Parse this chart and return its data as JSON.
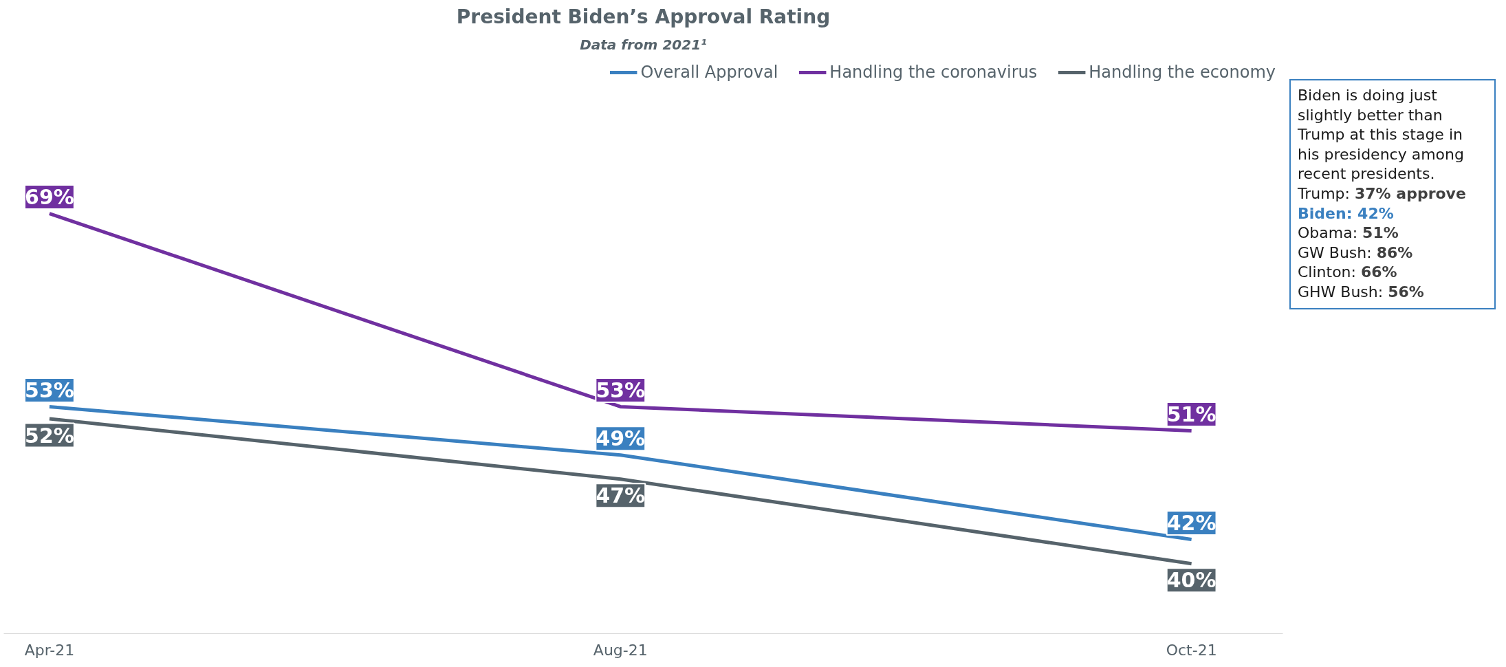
{
  "chart_data": {
    "type": "line",
    "title": "President Biden’s Approval Rating",
    "subtitle": "Data from 2021¹",
    "categories": [
      "Apr-21",
      "Aug-21",
      "Oct-21"
    ],
    "series": [
      {
        "name": "Overall Approval",
        "color": "#3a80c0",
        "values": [
          53,
          49,
          42
        ],
        "value_labels": [
          "53%",
          "49%",
          "42%"
        ]
      },
      {
        "name": "Handling the coronavirus",
        "color": "#7030a0",
        "values": [
          69,
          53,
          51
        ],
        "value_labels": [
          "69%",
          "53%",
          "51%"
        ]
      },
      {
        "name": "Handling the economy",
        "color": "#56636b",
        "values": [
          52,
          47,
          40
        ],
        "value_labels": [
          "52%",
          "47%",
          "40%"
        ]
      }
    ],
    "legend": "top",
    "grid": false,
    "marker": "none",
    "line_style": "solid",
    "annotations": [
      "Biden is doing just slightly better than Trump at this stage in his presidency among recent presidents.",
      "Trump: 37% approve",
      "Biden: 42%",
      "Obama: 51%",
      "GW Bush: 86%",
      "Clinton: 66%",
      "GHW Bush: 56%"
    ]
  }
}
